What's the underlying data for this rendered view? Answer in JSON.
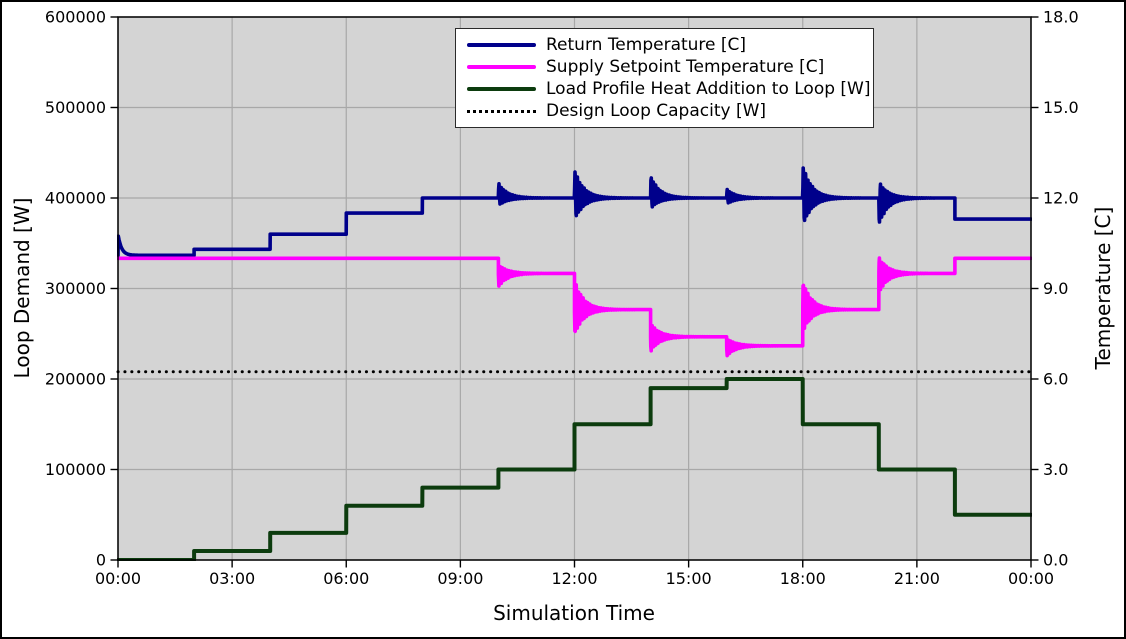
{
  "chart_data": {
    "type": "line",
    "title": "",
    "plot_bg": "#d4d4d4",
    "grid_color": "#a8a8a8",
    "grid": true,
    "x_axis": {
      "label": "Simulation Time",
      "ticks": [
        "00:00",
        "03:00",
        "06:00",
        "09:00",
        "12:00",
        "15:00",
        "18:00",
        "21:00",
        "00:00"
      ],
      "tick_hours": [
        0,
        3,
        6,
        9,
        12,
        15,
        18,
        21,
        24
      ],
      "range_hours": [
        0,
        24
      ]
    },
    "left_axis": {
      "label": "Loop Demand [W]",
      "tick_labels": [
        "0",
        "100000",
        "200000",
        "300000",
        "400000",
        "500000",
        "600000"
      ],
      "tick_values": [
        0,
        100000,
        200000,
        300000,
        400000,
        500000,
        600000
      ],
      "range": [
        0,
        600000
      ]
    },
    "right_axis": {
      "label": "Temperature [C]",
      "tick_labels": [
        "0.0",
        "3.0",
        "6.0",
        "9.0",
        "12.0",
        "15.0",
        "18.0"
      ],
      "tick_values": [
        0,
        3,
        6,
        9,
        12,
        15,
        18
      ],
      "range": [
        0,
        18
      ]
    },
    "legend": {
      "position": "upper center",
      "entries": [
        {
          "label": "Return Temperature [C]",
          "color": "#00008b",
          "style": "solid"
        },
        {
          "label": "Supply Setpoint Temperature [C]",
          "color": "#ff00ff",
          "style": "solid"
        },
        {
          "label": "Load Profile Heat Addition to Loop [W]",
          "color": "#0c3c0e",
          "style": "solid"
        },
        {
          "label": "Design Loop Capacity [W]",
          "color": "#000000",
          "style": "dotted"
        }
      ]
    },
    "series": [
      {
        "name": "Return Temperature [C]",
        "axis": "right",
        "color": "#00008b",
        "line_width": 3.6,
        "step_hours": [
          0,
          2,
          4,
          6,
          8,
          22
        ],
        "step_values": [
          10.1,
          10.3,
          10.8,
          11.5,
          12.0,
          11.3
        ],
        "transients": [
          {
            "t": 0,
            "type": "decay",
            "up": 0.7,
            "tau": 0.09
          },
          {
            "t": 10,
            "type": "ring",
            "up": 0.5,
            "down": 0.25,
            "phase": 1
          },
          {
            "t": 12,
            "type": "ring",
            "up": 0.95,
            "down": 0.75,
            "phase": 1
          },
          {
            "t": 14,
            "type": "ring",
            "up": 0.75,
            "down": 0.35,
            "phase": 1
          },
          {
            "t": 16,
            "type": "ring",
            "up": 0.3,
            "down": 0.2,
            "phase": 1
          },
          {
            "t": 18,
            "type": "ring",
            "up": 1.1,
            "down": 0.95,
            "phase": 1
          },
          {
            "t": 20,
            "type": "ring",
            "up": 0.55,
            "down": 0.9,
            "phase": -1
          }
        ]
      },
      {
        "name": "Supply Setpoint Temperature [C]",
        "axis": "right",
        "color": "#ff00ff",
        "line_width": 3.6,
        "step_hours": [
          0,
          10,
          12,
          14,
          16,
          18,
          20,
          22
        ],
        "step_values": [
          10.0,
          9.5,
          8.3,
          7.4,
          7.1,
          8.3,
          9.5,
          10.0
        ],
        "transients": [
          {
            "t": 10,
            "type": "ring",
            "up": 0.3,
            "down": 0.45,
            "phase": -1
          },
          {
            "t": 12,
            "type": "ring",
            "up": 1.0,
            "down": 0.85,
            "phase": -1
          },
          {
            "t": 14,
            "type": "ring",
            "up": 0.45,
            "down": 0.5,
            "phase": -1
          },
          {
            "t": 16,
            "type": "ring",
            "up": 0.25,
            "down": 0.35,
            "phase": -1
          },
          {
            "t": 18,
            "type": "ring",
            "up": 0.95,
            "down": 0.75,
            "phase": 1
          },
          {
            "t": 20,
            "type": "ring",
            "up": 0.55,
            "down": 0.65,
            "phase": 1
          }
        ]
      },
      {
        "name": "Load Profile Heat Addition to Loop [W]",
        "axis": "left",
        "color": "#0c3c0e",
        "line_width": 4,
        "step_hours": [
          0,
          2,
          4,
          6,
          8,
          10,
          12,
          14,
          16,
          18,
          20,
          22
        ],
        "step_values": [
          0,
          10000,
          30000,
          60000,
          80000,
          100000,
          150000,
          190000,
          200000,
          150000,
          100000,
          50000
        ]
      },
      {
        "name": "Design Loop Capacity [W]",
        "axis": "left",
        "color": "#000000",
        "line_width": 3,
        "style": "dotted",
        "constant": 208000
      }
    ]
  }
}
